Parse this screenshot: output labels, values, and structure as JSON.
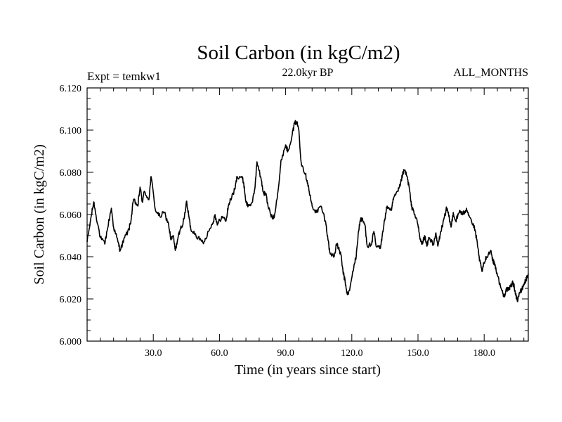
{
  "chart_data": {
    "type": "line",
    "title": "Soil Carbon (in kgC/m2)",
    "subtitle_left": "Expt = temkw1",
    "subtitle_center": "22.0kyr BP",
    "subtitle_right": "ALL_MONTHS",
    "xlabel": "Time (in years since start)",
    "ylabel": "Soil Carbon (in kgC/m2)",
    "xlim": [
      0,
      200
    ],
    "ylim": [
      6.0,
      6.12
    ],
    "xticks": [
      30,
      60,
      90,
      120,
      150,
      180
    ],
    "xtick_labels": [
      "30.0",
      "60.0",
      "90.0",
      "120.0",
      "150.0",
      "180.0"
    ],
    "yticks": [
      6.0,
      6.02,
      6.04,
      6.06,
      6.08,
      6.1,
      6.12
    ],
    "ytick_labels": [
      "6.000",
      "6.020",
      "6.040",
      "6.060",
      "6.080",
      "6.100",
      "6.120"
    ],
    "line_color": "#000000",
    "series": [
      {
        "name": "Soil Carbon",
        "x": [
          0,
          2,
          3,
          4,
          6,
          8,
          9,
          11,
          12,
          14,
          15,
          17,
          19,
          20,
          21,
          23,
          24,
          25,
          26,
          28,
          29,
          31,
          33,
          35,
          37,
          38,
          39,
          40,
          41,
          42,
          44,
          45,
          46,
          47,
          49,
          51,
          53,
          55,
          57,
          58,
          59,
          61,
          63,
          64,
          65,
          67,
          68,
          70,
          71,
          72,
          73,
          75,
          76,
          77,
          79,
          80,
          81,
          82,
          84,
          85,
          87,
          88,
          90,
          91,
          93,
          94,
          95,
          96,
          97,
          99,
          100,
          101,
          102,
          104,
          106,
          108,
          109,
          110,
          112,
          113,
          114,
          115,
          116,
          117,
          118,
          119,
          121,
          122,
          123,
          124,
          125,
          126,
          127,
          129,
          130,
          131,
          133,
          134,
          135,
          136,
          138,
          139,
          141,
          142,
          143,
          144,
          145,
          146,
          147,
          148,
          150,
          151,
          152,
          153,
          154,
          155,
          157,
          158,
          159,
          160,
          162,
          163,
          164,
          165,
          166,
          167,
          168,
          169,
          170,
          171,
          172,
          173,
          175,
          176,
          177,
          178,
          179,
          180,
          181,
          183,
          184,
          185,
          186,
          188,
          189,
          190,
          191,
          192,
          193,
          194,
          195,
          196,
          197,
          198,
          199,
          200
        ],
        "y": [
          6.047,
          6.06,
          6.066,
          6.06,
          6.049,
          6.046,
          6.052,
          6.063,
          6.054,
          6.047,
          6.043,
          6.049,
          6.053,
          6.058,
          6.067,
          6.064,
          6.073,
          6.066,
          6.071,
          6.067,
          6.078,
          6.062,
          6.059,
          6.061,
          6.055,
          6.048,
          6.05,
          6.043,
          6.048,
          6.052,
          6.058,
          6.066,
          6.06,
          6.053,
          6.051,
          6.048,
          6.047,
          6.052,
          6.056,
          6.06,
          6.055,
          6.059,
          6.057,
          6.064,
          6.067,
          6.072,
          6.078,
          6.078,
          6.075,
          6.066,
          6.064,
          6.066,
          6.072,
          6.085,
          6.076,
          6.07,
          6.07,
          6.064,
          6.058,
          6.06,
          6.075,
          6.086,
          6.093,
          6.09,
          6.098,
          6.103,
          6.104,
          6.1,
          6.085,
          6.079,
          6.075,
          6.069,
          6.064,
          6.061,
          6.064,
          6.057,
          6.05,
          6.042,
          6.04,
          6.046,
          6.044,
          6.041,
          6.033,
          6.028,
          6.022,
          6.024,
          6.036,
          6.04,
          6.052,
          6.058,
          6.057,
          6.055,
          6.045,
          6.046,
          6.052,
          6.045,
          6.044,
          6.052,
          6.058,
          6.064,
          6.062,
          6.068,
          6.071,
          6.074,
          6.079,
          6.081,
          6.078,
          6.073,
          6.064,
          6.062,
          6.055,
          6.048,
          6.046,
          6.05,
          6.045,
          6.049,
          6.046,
          6.051,
          6.045,
          6.05,
          6.059,
          6.063,
          6.059,
          6.054,
          6.061,
          6.057,
          6.059,
          6.062,
          6.06,
          6.061,
          6.063,
          6.06,
          6.055,
          6.052,
          6.045,
          6.038,
          6.033,
          6.037,
          6.04,
          6.043,
          6.038,
          6.036,
          6.031,
          6.024,
          6.021,
          6.025,
          6.024,
          6.026,
          6.028,
          6.024,
          6.019,
          6.023,
          6.024,
          6.027,
          6.029,
          6.032
        ]
      }
    ]
  }
}
